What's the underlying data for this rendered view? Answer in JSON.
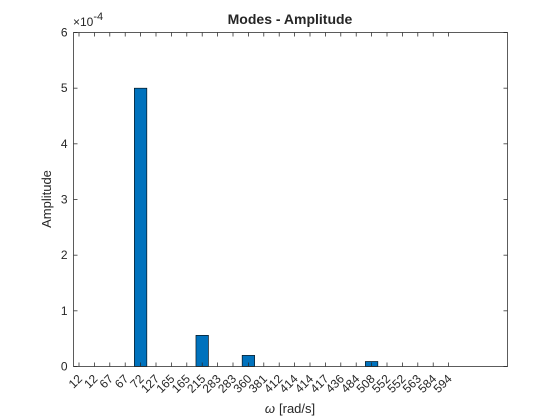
{
  "chart_data": {
    "type": "bar",
    "title": "Modes - Amplitude",
    "xlabel_symbol": "ω",
    "xlabel_unit": "[rad/s]",
    "ylabel": "Amplitude",
    "y_exponent_base": "×10",
    "y_exponent": "-4",
    "y_scale": 0.0001,
    "ylim": [
      0,
      6
    ],
    "yticks": [
      0,
      1,
      2,
      3,
      4,
      5,
      6
    ],
    "grid": false,
    "bar_color": "#0072bd",
    "categories": [
      "12",
      "12",
      "67",
      "67",
      "72",
      "127",
      "165",
      "165",
      "215",
      "283",
      "283",
      "360",
      "381",
      "412",
      "414",
      "414",
      "417",
      "436",
      "484",
      "508",
      "552",
      "552",
      "563",
      "584",
      "594"
    ],
    "values": [
      0,
      0,
      0,
      0,
      5.0,
      0,
      0,
      0,
      0.56,
      0,
      0,
      0.2,
      0,
      0,
      0,
      0,
      0,
      0,
      0,
      0.09,
      0,
      0,
      0,
      0,
      0
    ]
  }
}
